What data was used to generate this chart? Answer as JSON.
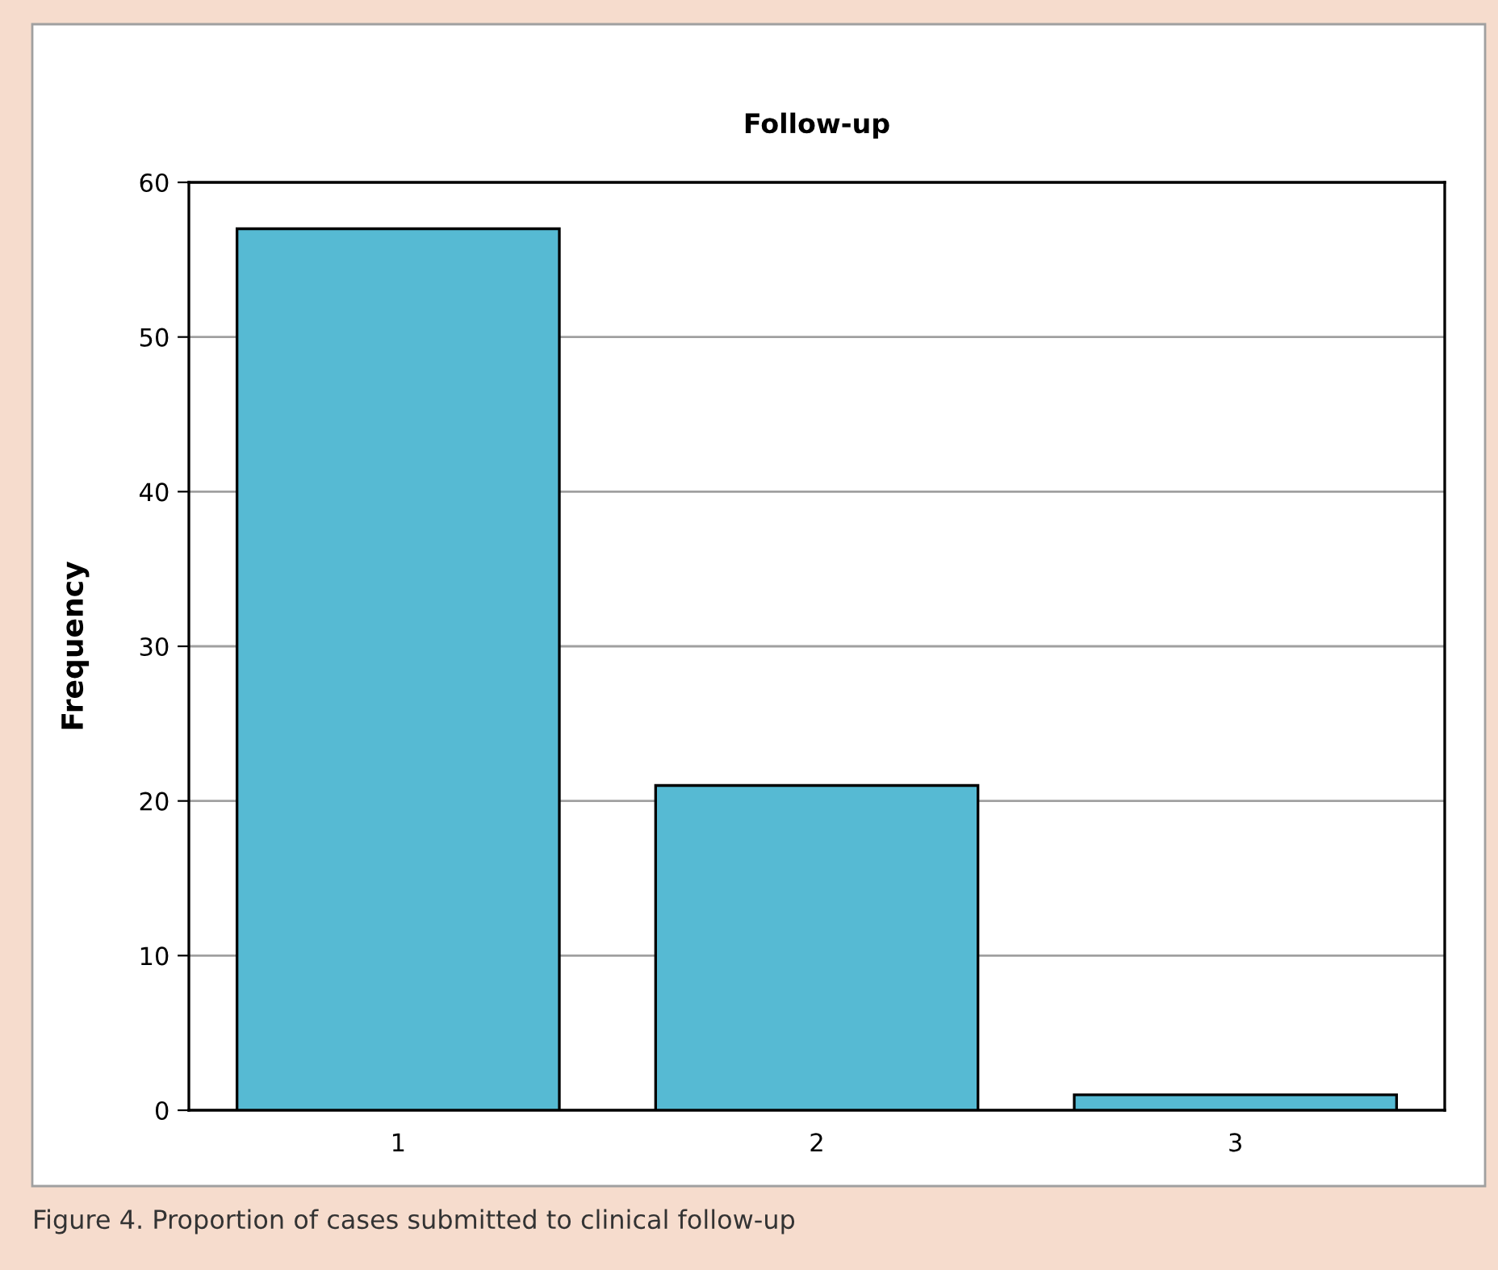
{
  "chart_data": {
    "type": "bar",
    "title": "Follow-up",
    "ylabel": "Frequency",
    "categories": [
      "1",
      "2",
      "3"
    ],
    "values": [
      57,
      21,
      1
    ],
    "color": "#56bad3",
    "ylim": [
      0,
      60
    ],
    "yticks": [
      0,
      10,
      20,
      30,
      40,
      50,
      60
    ],
    "grid": "y",
    "legend": false,
    "annotations": [
      "Figure 4. Proportion of cases submitted to clinical follow-up"
    ]
  }
}
